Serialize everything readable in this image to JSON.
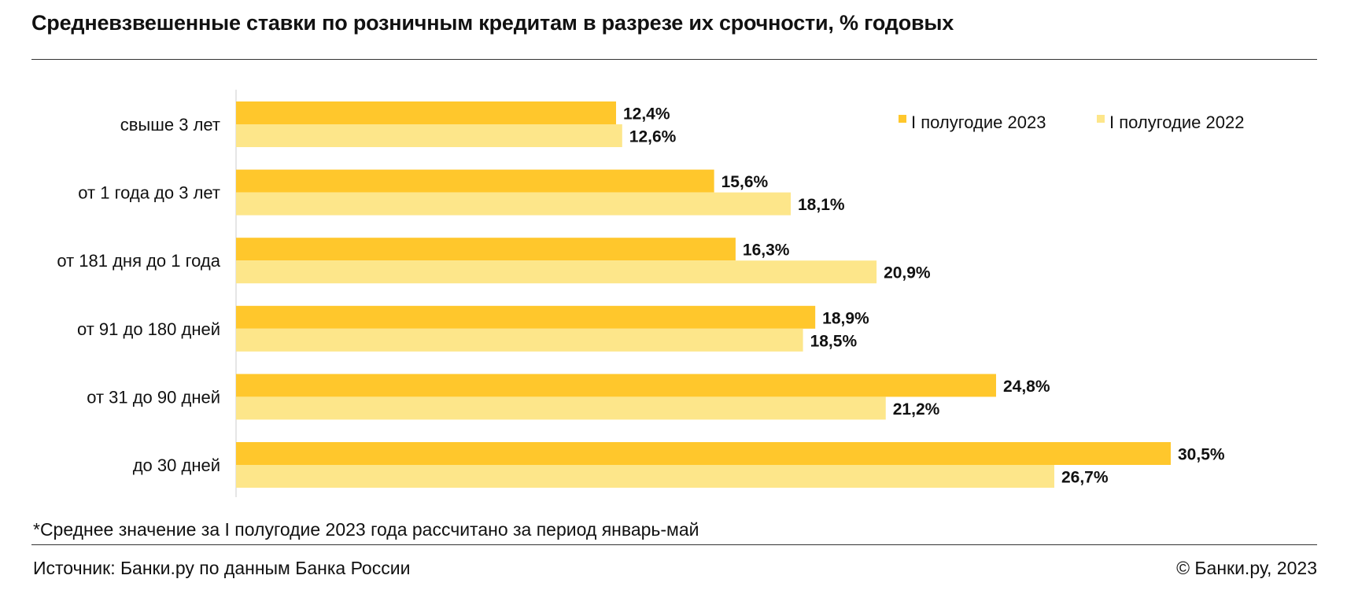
{
  "title": "Средневзвешенные ставки по розничным кредитам в разрезе их срочности, % годовых",
  "footnote": "*Среднее значение за I полугодие 2023 года рассчитано за период январь-май",
  "source": "Источник: Банки.ру по данным Банка России",
  "copyright": "© Банки.ру, 2023",
  "colors": {
    "series_2023": "#FFC72C",
    "series_2022": "#FDE68A",
    "axis": "#DDDDDD"
  },
  "chart_data": {
    "type": "bar",
    "orientation": "horizontal",
    "categories": [
      "свыше 3 лет",
      "от 1 года до 3 лет",
      "от 181 дня до 1 года",
      "от 91 до 180 дней",
      "от 31 до 90 дней",
      "до 30 дней"
    ],
    "series": [
      {
        "name": "I полугодие 2023",
        "values": [
          12.4,
          15.6,
          16.3,
          18.9,
          24.8,
          30.5
        ],
        "labels": [
          "12,4%",
          "15,6%",
          "16,3%",
          "18,9%",
          "24,8%",
          "30,5%"
        ]
      },
      {
        "name": "I полугодие 2022",
        "values": [
          12.6,
          18.1,
          20.9,
          18.5,
          21.2,
          26.7
        ],
        "labels": [
          "12,6%",
          "18,1%",
          "20,9%",
          "18,5%",
          "21,2%",
          "26,7%"
        ]
      }
    ],
    "xlim": [
      0,
      30.5
    ],
    "grid": false,
    "legend_position": "top-right"
  }
}
